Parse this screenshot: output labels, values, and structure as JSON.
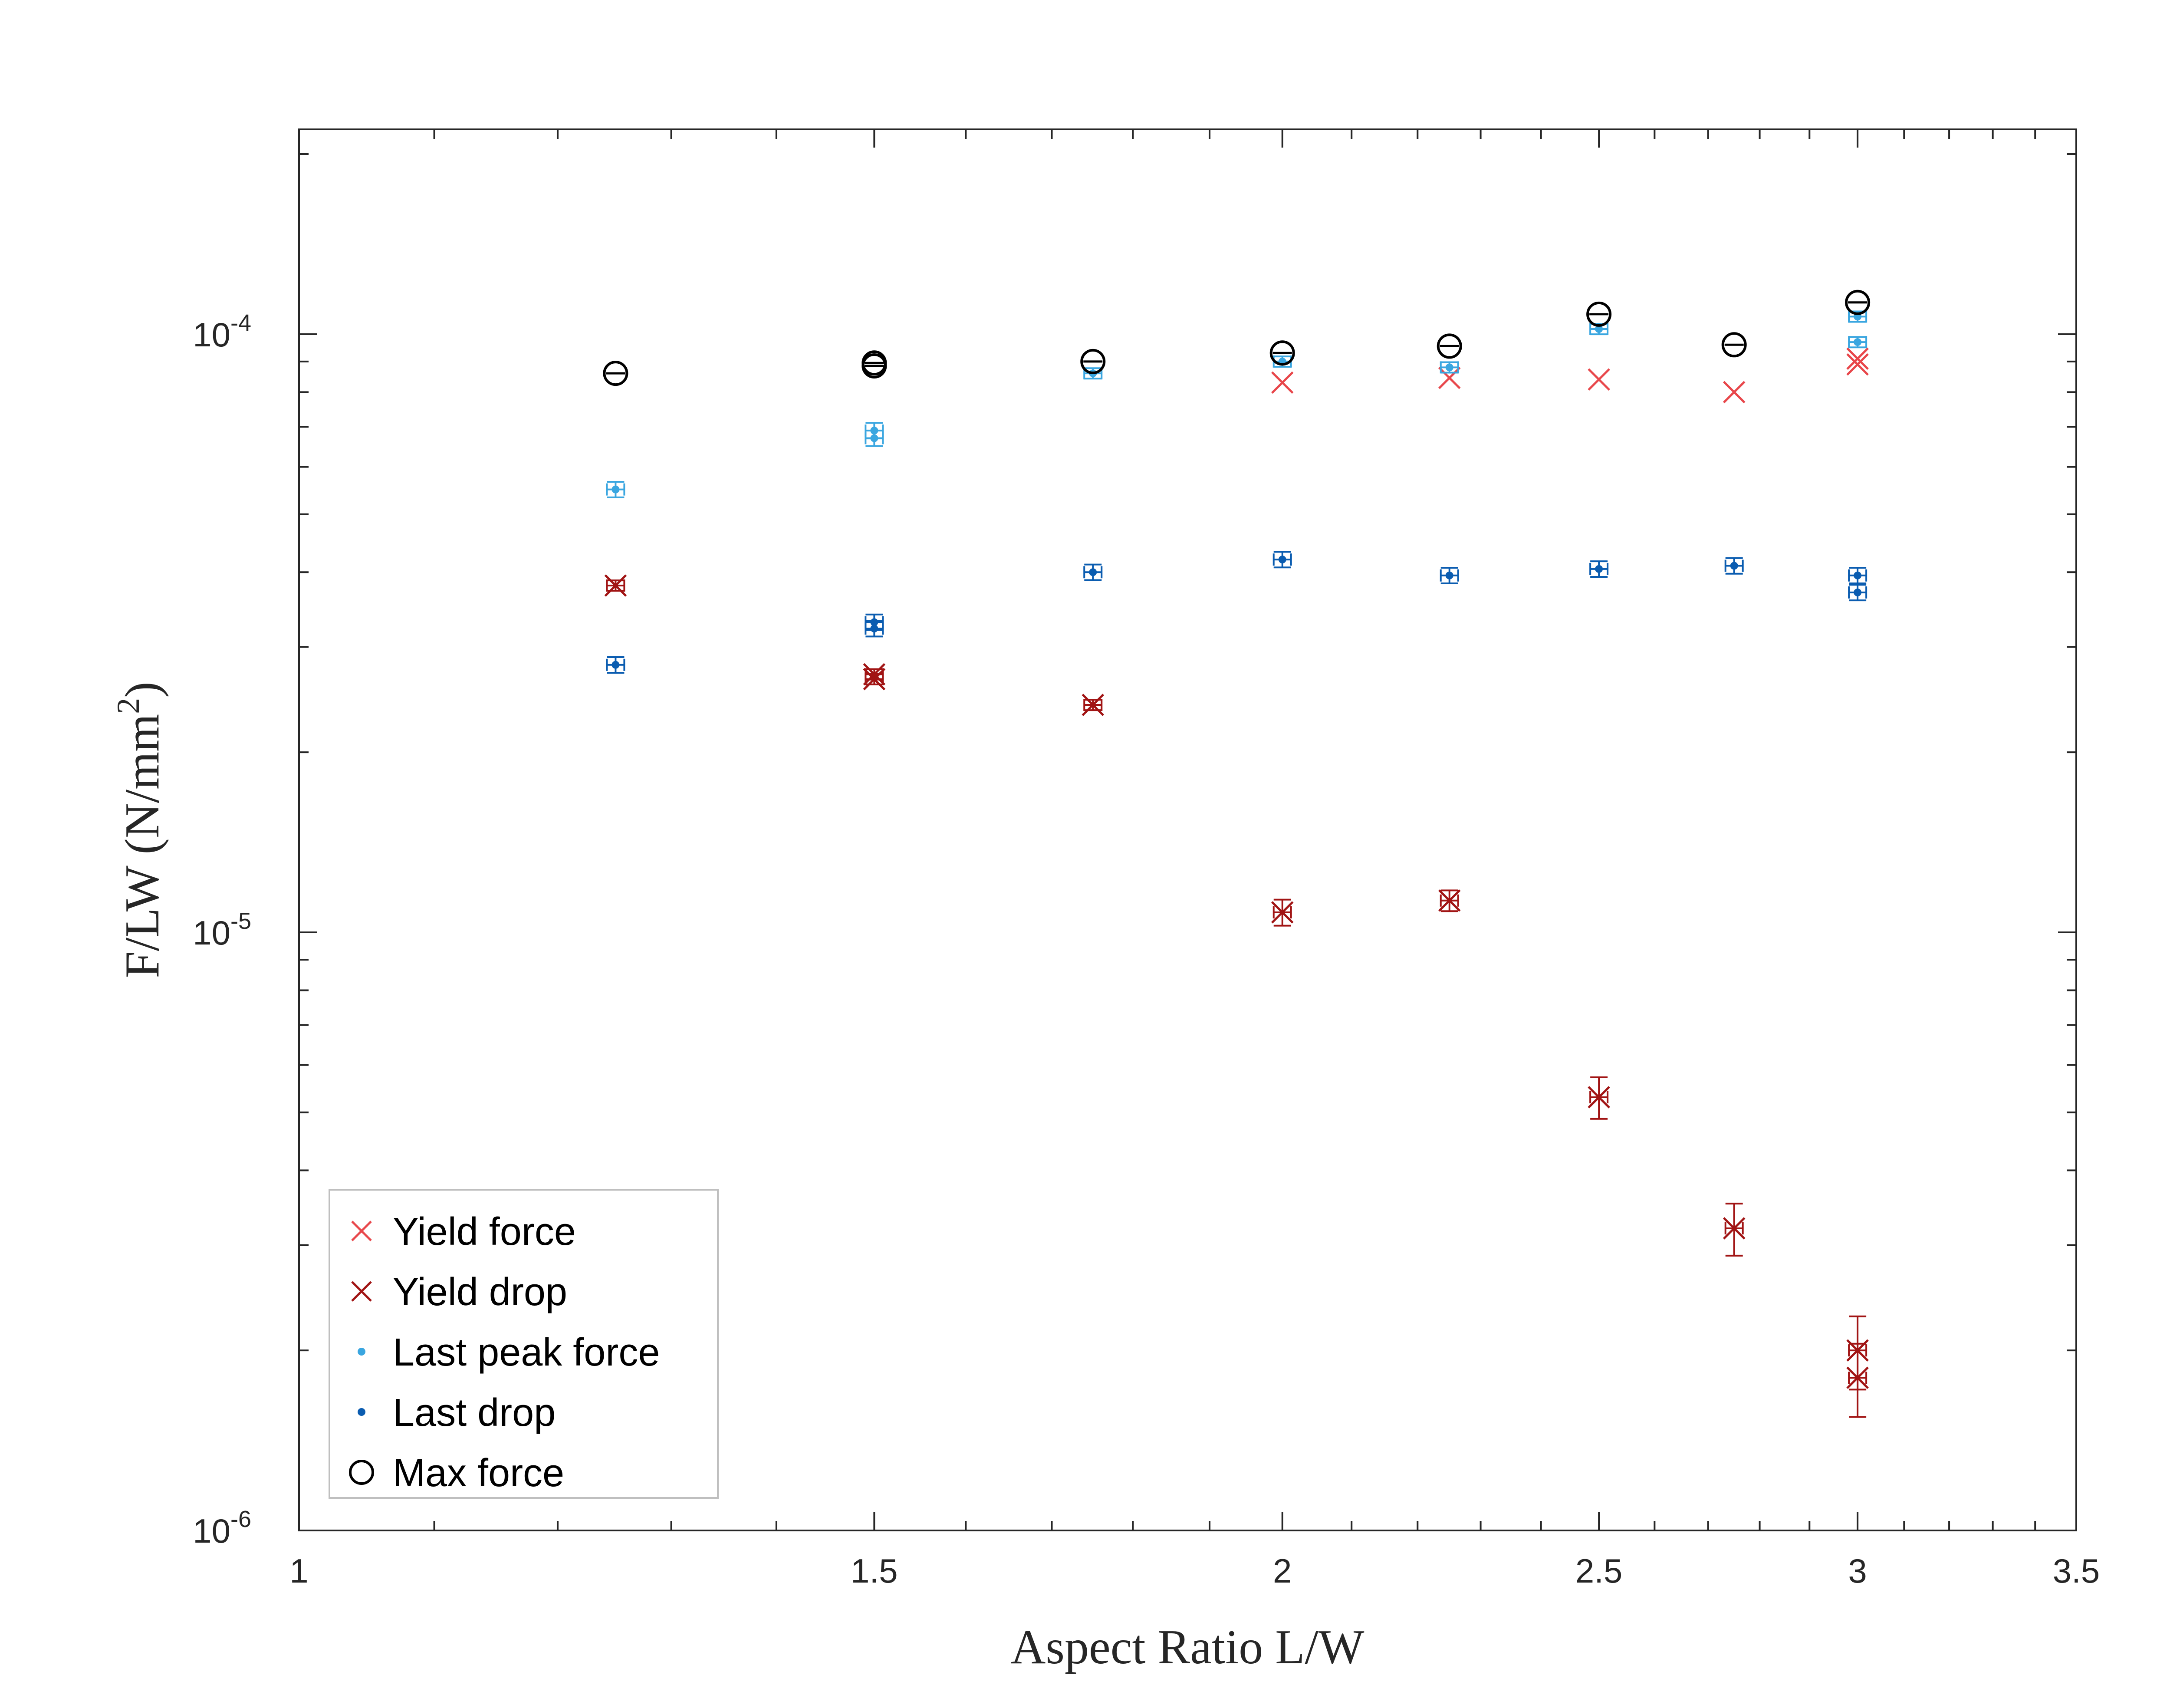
{
  "chart_data": {
    "type": "scatter",
    "title": "",
    "xlabel": "Aspect Ratio L/W",
    "ylabel_main": "F/LW (N/mm",
    "ylabel_sup": "2",
    "ylabel_close": ")",
    "xscale": "log",
    "yscale": "log",
    "xlim": [
      1,
      3.5
    ],
    "ylim": [
      1e-06,
      0.00022
    ],
    "x_ticks": [
      {
        "value": 1,
        "label": "1"
      },
      {
        "value": 1.5,
        "label": "1.5"
      },
      {
        "value": 2,
        "label": "2"
      },
      {
        "value": 2.5,
        "label": "2.5"
      },
      {
        "value": 3,
        "label": "3"
      },
      {
        "value": 3.5,
        "label": "3.5"
      }
    ],
    "y_ticks": [
      {
        "value": 0.0001,
        "base": "10",
        "exp": "-4"
      },
      {
        "value": 1e-05,
        "base": "10",
        "exp": "-5"
      },
      {
        "value": 1e-06,
        "base": "10",
        "exp": "-6"
      }
    ],
    "grid": false,
    "legend_position": "bottom-left",
    "series": [
      {
        "name": "Yield force",
        "marker": "x",
        "color": "#e8474b",
        "points": [
          {
            "x": 2.0,
            "y": 8.3e-05
          },
          {
            "x": 2.25,
            "y": 8.45e-05
          },
          {
            "x": 2.5,
            "y": 8.4e-05
          },
          {
            "x": 2.75,
            "y": 8e-05
          },
          {
            "x": 3.0,
            "y": 8.9e-05
          },
          {
            "x": 3.0,
            "y": 9.1e-05
          }
        ]
      },
      {
        "name": "Yield drop",
        "marker": "x",
        "color": "#a11414",
        "points": [
          {
            "x": 1.25,
            "y": 3.8e-05,
            "err": 0.02
          },
          {
            "x": 1.5,
            "y": 2.65e-05,
            "err": 0.02
          },
          {
            "x": 1.5,
            "y": 2.7e-05,
            "err": 0.02
          },
          {
            "x": 1.75,
            "y": 2.4e-05,
            "err": 0.02
          },
          {
            "x": 2.0,
            "y": 1.08e-05,
            "err": 0.05
          },
          {
            "x": 2.25,
            "y": 1.13e-05,
            "err": 0.04
          },
          {
            "x": 2.5,
            "y": 5.3e-06,
            "err": 0.08
          },
          {
            "x": 2.75,
            "y": 3.2e-06,
            "err": 0.1
          },
          {
            "x": 3.0,
            "y": 2e-06,
            "err": 0.14
          },
          {
            "x": 3.0,
            "y": 1.8e-06,
            "err": 0.14
          }
        ]
      },
      {
        "name": "Last peak force",
        "marker": "dot",
        "color": "#3aa6e0",
        "points": [
          {
            "x": 1.25,
            "y": 5.5e-05,
            "err": 0.03
          },
          {
            "x": 1.5,
            "y": 6.7e-05,
            "err": 0.03
          },
          {
            "x": 1.5,
            "y": 6.9e-05,
            "err": 0.03
          },
          {
            "x": 1.75,
            "y": 8.6e-05,
            "err": 0.02
          },
          {
            "x": 2.0,
            "y": 9e-05,
            "err": 0.02
          },
          {
            "x": 2.25,
            "y": 8.8e-05,
            "err": 0.02
          },
          {
            "x": 2.5,
            "y": 0.000102,
            "err": 0.02
          },
          {
            "x": 3.0,
            "y": 9.7e-05,
            "err": 0.02
          },
          {
            "x": 3.0,
            "y": 0.000107,
            "err": 0.02
          }
        ]
      },
      {
        "name": "Last drop",
        "marker": "dot",
        "color": "#0a5cb0",
        "points": [
          {
            "x": 1.25,
            "y": 2.8e-05,
            "err": 0.03
          },
          {
            "x": 1.5,
            "y": 3.22e-05,
            "err": 0.03
          },
          {
            "x": 1.5,
            "y": 3.3e-05,
            "err": 0.03
          },
          {
            "x": 1.75,
            "y": 4e-05,
            "err": 0.03
          },
          {
            "x": 2.0,
            "y": 4.2e-05,
            "err": 0.03
          },
          {
            "x": 2.25,
            "y": 3.95e-05,
            "err": 0.03
          },
          {
            "x": 2.5,
            "y": 4.05e-05,
            "err": 0.03
          },
          {
            "x": 2.75,
            "y": 4.1e-05,
            "err": 0.03
          },
          {
            "x": 3.0,
            "y": 3.7e-05,
            "err": 0.03
          },
          {
            "x": 3.0,
            "y": 3.95e-05,
            "err": 0.03
          }
        ]
      },
      {
        "name": "Max force",
        "marker": "circle",
        "color": "#000000",
        "points": [
          {
            "x": 1.25,
            "y": 8.6e-05
          },
          {
            "x": 1.5,
            "y": 8.85e-05
          },
          {
            "x": 1.5,
            "y": 8.95e-05
          },
          {
            "x": 1.75,
            "y": 9e-05
          },
          {
            "x": 2.0,
            "y": 9.3e-05
          },
          {
            "x": 2.25,
            "y": 9.55e-05
          },
          {
            "x": 2.5,
            "y": 0.000108
          },
          {
            "x": 2.75,
            "y": 9.6e-05
          },
          {
            "x": 3.0,
            "y": 0.000113
          }
        ]
      }
    ]
  }
}
